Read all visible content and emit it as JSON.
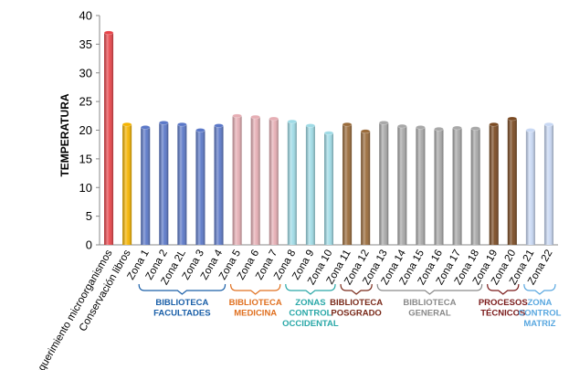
{
  "chart_data": {
    "type": "bar",
    "title": "",
    "xlabel": "",
    "ylabel": "TEMPERATURA",
    "ylim": [
      0,
      40
    ],
    "yticks": [
      0,
      5,
      10,
      15,
      20,
      25,
      30,
      35,
      40
    ],
    "grid": false,
    "categories": [
      "Requerimiento microorganismos",
      "Conservación libros",
      "Zona 1",
      "Zona 2",
      "Zona 2L",
      "Zona 3",
      "Zona 4",
      "Zona 5",
      "Zona 6",
      "Zona 7",
      "Zona 8",
      "Zona 9",
      "Zona 10",
      "Zona 11",
      "Zona 12",
      "Zona 13",
      "Zona 14",
      "Zona 15",
      "Zona 16",
      "Zona 17",
      "Zona 18",
      "Zona 19",
      "Zona 20",
      "Zona 21",
      "Zona 22"
    ],
    "values": [
      37,
      21,
      20.5,
      21.3,
      21,
      20,
      20.8,
      22.5,
      22.3,
      22,
      21.5,
      20.8,
      19.5,
      21,
      19.8,
      21.3,
      20.7,
      20.5,
      20.2,
      20.4,
      20.3,
      21,
      22,
      20,
      21
    ],
    "bar_colors": [
      "#e8454a",
      "#f5b400",
      "#5b78c8",
      "#5b78c8",
      "#5b78c8",
      "#5b78c8",
      "#5b78c8",
      "#e6aeb4",
      "#e6aeb4",
      "#e6aeb4",
      "#9fdbe6",
      "#9fdbe6",
      "#9fdbe6",
      "#9a6b3a",
      "#9a6b3a",
      "#a8a8a8",
      "#a8a8a8",
      "#a8a8a8",
      "#a8a8a8",
      "#a8a8a8",
      "#a8a8a8",
      "#7a4a22",
      "#7a4a22",
      "#c8d8f4",
      "#c8d8f4"
    ],
    "groups": [
      {
        "label_lines": [
          "BIBLIOTECA",
          "FACULTADES"
        ],
        "from": 2,
        "to": 6,
        "color": "#1a5fa8"
      },
      {
        "label_lines": [
          "BIBLIOTECA",
          "MEDICINA"
        ],
        "from": 7,
        "to": 9,
        "color": "#e07020"
      },
      {
        "label_lines": [
          "ZONAS",
          "CONTROL",
          "OCCIDENTAL"
        ],
        "from": 10,
        "to": 12,
        "color": "#2aa8a8"
      },
      {
        "label_lines": [
          "BIBLIOTECA",
          "POSGRADO"
        ],
        "from": 13,
        "to": 14,
        "color": "#7a2a1a"
      },
      {
        "label_lines": [
          "BIBLIOTECA",
          "GENERAL"
        ],
        "from": 15,
        "to": 20,
        "color": "#8a8a8a"
      },
      {
        "label_lines": [
          "PROCESOS",
          "TÉCNICOS"
        ],
        "from": 21,
        "to": 22,
        "color": "#7a1a1a"
      },
      {
        "label_lines": [
          "ZONA",
          "CONTROL",
          "MATRIZ"
        ],
        "from": 23,
        "to": 24,
        "color": "#5aa8e0"
      }
    ]
  }
}
